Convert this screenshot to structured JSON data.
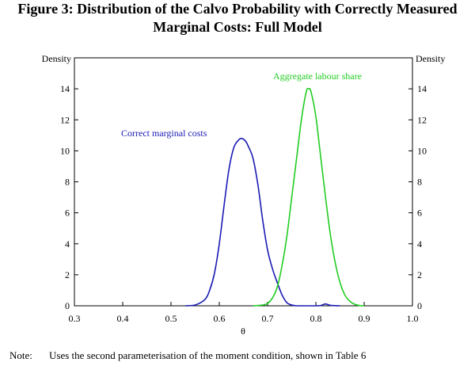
{
  "figure": {
    "title_line1": "Figure 3: Distribution of the Calvo Probability with Correctly Measured",
    "title_line2": "Marginal Costs: Full Model"
  },
  "note": {
    "label": "Note:",
    "text": "Uses the second parameterisation of the moment condition, shown in Table 6"
  },
  "colors": {
    "blue": "#1a1ab4",
    "green": "#22cc22",
    "axis": "#000000"
  },
  "chart_data": {
    "type": "line",
    "title": "Figure 3: Distribution of the Calvo Probability with Correctly Measured Marginal Costs: Full Model",
    "xlabel": "θ",
    "ylabel_left": "Density",
    "ylabel_right": "Density",
    "xlim": [
      0.3,
      1.0
    ],
    "ylim": [
      0,
      16
    ],
    "x_ticks": [
      "0.3",
      "0.4",
      "0.5",
      "0.6",
      "0.7",
      "0.8",
      "0.9",
      "1.0"
    ],
    "y_ticks": [
      "0",
      "2",
      "4",
      "6",
      "8",
      "10",
      "12",
      "14"
    ],
    "series": [
      {
        "name": "Correct marginal costs",
        "color": "#1a1ab4",
        "x": [
          0.53,
          0.55,
          0.57,
          0.58,
          0.59,
          0.6,
          0.61,
          0.62,
          0.63,
          0.64,
          0.645,
          0.65,
          0.655,
          0.66,
          0.67,
          0.68,
          0.69,
          0.7,
          0.71,
          0.72,
          0.73,
          0.74,
          0.75,
          0.76,
          0.77,
          0.78,
          0.79,
          0.8,
          0.81,
          0.82,
          0.83,
          0.85
        ],
        "y": [
          0,
          0.05,
          0.4,
          1.0,
          2.1,
          4.0,
          6.5,
          8.8,
          10.2,
          10.7,
          10.8,
          10.75,
          10.6,
          10.3,
          9.5,
          7.8,
          5.5,
          3.6,
          2.4,
          1.5,
          0.7,
          0.2,
          0.05,
          0,
          0,
          0,
          0,
          0,
          0.02,
          0.12,
          0.03,
          0
        ]
      },
      {
        "name": "Aggregate labour share",
        "color": "#22cc22",
        "x": [
          0.67,
          0.69,
          0.7,
          0.71,
          0.72,
          0.73,
          0.74,
          0.75,
          0.76,
          0.77,
          0.78,
          0.785,
          0.79,
          0.8,
          0.81,
          0.82,
          0.83,
          0.84,
          0.85,
          0.86,
          0.87,
          0.88,
          0.89,
          0.9
        ],
        "y": [
          0,
          0.05,
          0.15,
          0.5,
          1.2,
          2.6,
          4.5,
          7.0,
          9.5,
          12.0,
          13.8,
          14.0,
          13.8,
          12.2,
          9.6,
          7.0,
          4.6,
          2.8,
          1.5,
          0.7,
          0.3,
          0.1,
          0.02,
          0
        ]
      }
    ],
    "annotations": [
      {
        "text": "Correct marginal costs",
        "series": 0
      },
      {
        "text": "Aggregate labour share",
        "series": 1
      }
    ]
  }
}
